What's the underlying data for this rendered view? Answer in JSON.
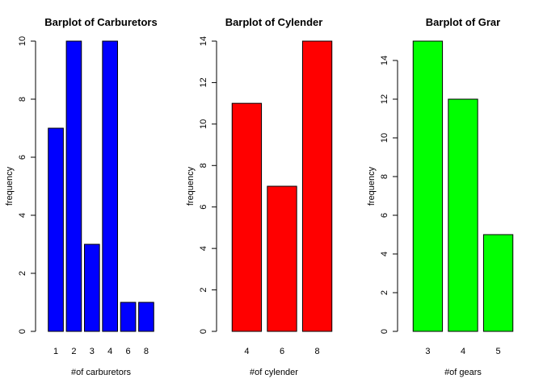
{
  "chart_data": [
    {
      "type": "bar",
      "title": "Barplot of Carburetors",
      "xlabel": "#of carburetors",
      "ylabel": "frequency",
      "categories": [
        "1",
        "2",
        "3",
        "4",
        "6",
        "8"
      ],
      "values": [
        7,
        10,
        3,
        10,
        1,
        1
      ],
      "ylim": [
        0,
        10
      ],
      "yticks": [
        0,
        2,
        4,
        6,
        8,
        10
      ],
      "color": "#0000ff"
    },
    {
      "type": "bar",
      "title": "Barplot of Cylender",
      "xlabel": "#of cylender",
      "ylabel": "frequency",
      "categories": [
        "4",
        "6",
        "8"
      ],
      "values": [
        11,
        7,
        14
      ],
      "ylim": [
        0,
        14
      ],
      "yticks": [
        0,
        2,
        4,
        6,
        8,
        10,
        12,
        14
      ],
      "color": "#ff0000"
    },
    {
      "type": "bar",
      "title": "Barplot of Grar",
      "xlabel": "#of gears",
      "ylabel": "frequency",
      "categories": [
        "3",
        "4",
        "5"
      ],
      "values": [
        15,
        12,
        5
      ],
      "ylim": [
        0,
        15
      ],
      "yticks": [
        0,
        2,
        4,
        6,
        8,
        10,
        12,
        14
      ],
      "color": "#00ff00"
    }
  ]
}
